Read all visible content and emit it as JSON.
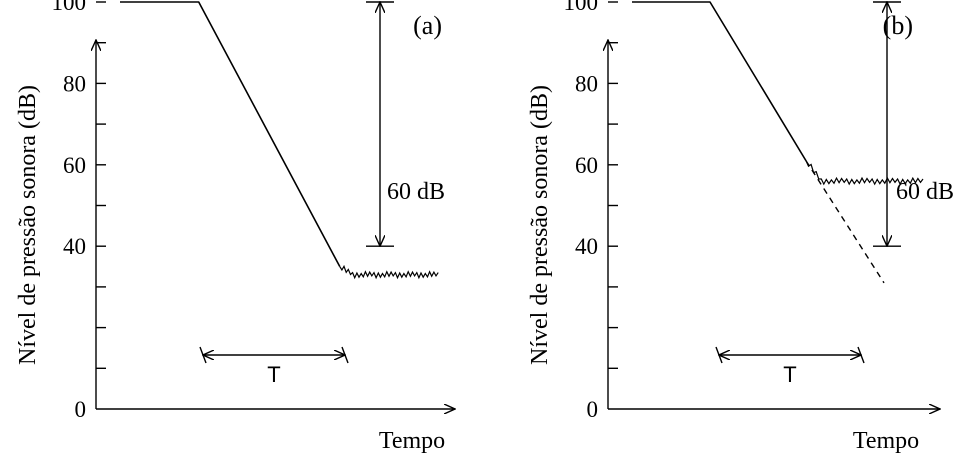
{
  "chart_data": [
    {
      "type": "line",
      "panel_label": "(a)",
      "xlabel": "Tempo",
      "ylabel": "Nível de pressão sonora (dB)",
      "ylim": [
        0,
        110
      ],
      "yticks": [
        "0",
        "40",
        "60",
        "80",
        "100"
      ],
      "series": [
        {
          "values": [
            {
              "t": 0.0,
              "db": 100
            },
            {
              "t": 0.24,
              "db": 100
            },
            {
              "t": 0.67,
              "db": 35
            },
            {
              "t": 0.97,
              "db": 33
            }
          ]
        }
      ],
      "annotations": {
        "range_label": "60 dB",
        "range_from": 100,
        "range_to": 40,
        "interval_label": "T"
      }
    },
    {
      "type": "line",
      "panel_label": "(b)",
      "xlabel": "Tempo",
      "ylabel": "Nível de pressão sonora (dB)",
      "ylim": [
        0,
        110
      ],
      "yticks": [
        "0",
        "40",
        "60",
        "80",
        "100"
      ],
      "series": [
        {
          "values": [
            {
              "t": 0.0,
              "db": 100
            },
            {
              "t": 0.26,
              "db": 100
            },
            {
              "t": 0.58,
              "db": 61
            },
            {
              "t": 0.97,
              "db": 56
            }
          ]
        },
        {
          "style": "dashed",
          "values": [
            {
              "t": 0.58,
              "db": 61
            },
            {
              "t": 0.84,
              "db": 31
            }
          ]
        }
      ],
      "annotations": {
        "range_label": "60 dB",
        "range_from": 100,
        "range_to": 40,
        "interval_label": "T"
      }
    }
  ]
}
